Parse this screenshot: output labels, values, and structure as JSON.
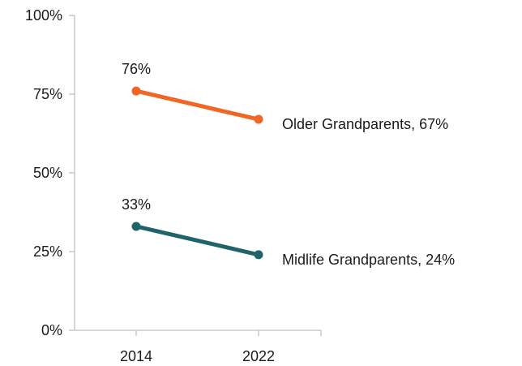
{
  "chart_data": {
    "type": "line",
    "title": "",
    "xlabel": "",
    "ylabel": "",
    "categories": [
      "2014",
      "2022"
    ],
    "y_ticks": [
      "0%",
      "25%",
      "50%",
      "75%",
      "100%"
    ],
    "ylim": [
      0,
      100
    ],
    "grid": false,
    "series": [
      {
        "name": "Older Grandparents",
        "values": [
          76,
          67
        ],
        "color": "#f26522",
        "start_label": "76%",
        "end_label": "Older Grandparents, 67%"
      },
      {
        "name": "Midlife Grandparents",
        "values": [
          33,
          24
        ],
        "color": "#1f6469",
        "start_label": "33%",
        "end_label": "Midlife Grandparents, 24%"
      }
    ]
  }
}
